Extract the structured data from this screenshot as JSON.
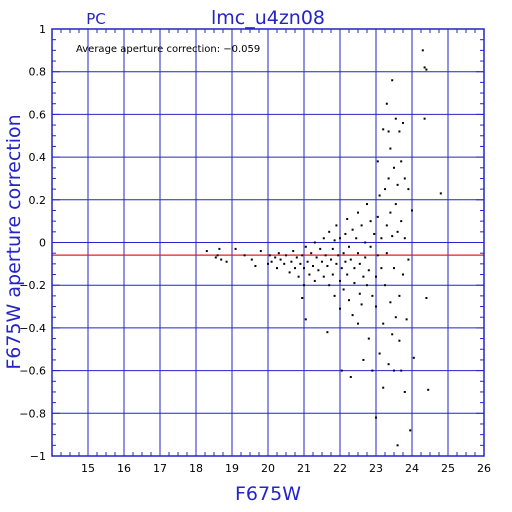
{
  "chart_data": {
    "type": "scatter",
    "title": "lmc_u4zn08",
    "subtitle": "PC",
    "annotation": "Average aperture correction:  −0.059",
    "xlabel": "F675W",
    "ylabel": "F675W aperture correction",
    "xlim": [
      14,
      26
    ],
    "ylim": [
      -1,
      1
    ],
    "xticks": [
      "15",
      "16",
      "17",
      "18",
      "19",
      "20",
      "21",
      "22",
      "23",
      "24",
      "25",
      "26"
    ],
    "yticks": [
      "1",
      "0.8",
      "0.6",
      "0.4",
      "0.2",
      "0",
      "−0.2",
      "−0.4",
      "−0.6",
      "−0.8",
      "−1"
    ],
    "xtick_values": [
      15,
      16,
      17,
      18,
      19,
      20,
      21,
      22,
      23,
      24,
      25,
      26
    ],
    "ytick_values": [
      1,
      0.8,
      0.6,
      0.4,
      0.2,
      0,
      -0.2,
      -0.4,
      -0.6,
      -0.8,
      -1
    ],
    "grid": true,
    "average_line": -0.059,
    "colors": {
      "axis": "#2424c8",
      "grid": "#2424c8",
      "average_line": "#e02020",
      "points": "#000000"
    },
    "points": [
      [
        18.3,
        -0.04
      ],
      [
        18.55,
        -0.07
      ],
      [
        18.65,
        -0.03
      ],
      [
        18.7,
        -0.08
      ],
      [
        18.85,
        -0.09
      ],
      [
        18.6,
        -0.06
      ],
      [
        19.1,
        -0.03
      ],
      [
        19.35,
        -0.06
      ],
      [
        19.55,
        -0.08
      ],
      [
        19.65,
        -0.11
      ],
      [
        19.8,
        -0.04
      ],
      [
        20.0,
        -0.1
      ],
      [
        20.05,
        -0.06
      ],
      [
        20.1,
        -0.09
      ],
      [
        20.2,
        -0.07
      ],
      [
        20.25,
        -0.12
      ],
      [
        20.3,
        -0.05
      ],
      [
        20.35,
        -0.08
      ],
      [
        20.45,
        -0.1
      ],
      [
        20.5,
        -0.06
      ],
      [
        20.6,
        -0.14
      ],
      [
        20.65,
        -0.09
      ],
      [
        20.7,
        -0.04
      ],
      [
        20.75,
        -0.12
      ],
      [
        20.8,
        -0.07
      ],
      [
        20.85,
        -0.16
      ],
      [
        20.9,
        -0.1
      ],
      [
        20.95,
        -0.06
      ],
      [
        20.95,
        -0.26
      ],
      [
        21.0,
        -0.2
      ],
      [
        21.0,
        -0.12
      ],
      [
        21.05,
        -0.36
      ],
      [
        21.05,
        -0.02
      ],
      [
        21.1,
        -0.09
      ],
      [
        21.15,
        -0.15
      ],
      [
        21.2,
        -0.05
      ],
      [
        21.25,
        -0.11
      ],
      [
        21.3,
        -0.18
      ],
      [
        21.3,
        0.0
      ],
      [
        21.35,
        -0.07
      ],
      [
        21.4,
        -0.13
      ],
      [
        21.45,
        -0.03
      ],
      [
        21.5,
        -0.09
      ],
      [
        21.55,
        -0.16
      ],
      [
        21.55,
        0.02
      ],
      [
        21.6,
        -0.06
      ],
      [
        21.65,
        -0.11
      ],
      [
        21.65,
        -0.42
      ],
      [
        21.7,
        -0.2
      ],
      [
        21.7,
        0.05
      ],
      [
        21.75,
        -0.08
      ],
      [
        21.8,
        -0.03
      ],
      [
        21.8,
        -0.15
      ],
      [
        21.85,
        -0.25
      ],
      [
        21.85,
        0.01
      ],
      [
        21.9,
        -0.1
      ],
      [
        21.9,
        0.08
      ],
      [
        21.95,
        -0.06
      ],
      [
        22.0,
        -0.18
      ],
      [
        22.0,
        -0.31
      ],
      [
        22.0,
        0.02
      ],
      [
        22.05,
        -0.12
      ],
      [
        22.05,
        -0.6
      ],
      [
        22.1,
        -0.05
      ],
      [
        22.1,
        -0.22
      ],
      [
        22.15,
        0.04
      ],
      [
        22.15,
        -0.09
      ],
      [
        22.2,
        -0.15
      ],
      [
        22.2,
        0.11
      ],
      [
        22.25,
        -0.27
      ],
      [
        22.25,
        -0.02
      ],
      [
        22.3,
        -0.63
      ],
      [
        22.3,
        -0.08
      ],
      [
        22.35,
        -0.34
      ],
      [
        22.35,
        0.06
      ],
      [
        22.4,
        -0.12
      ],
      [
        22.4,
        -0.19
      ],
      [
        22.45,
        0.02
      ],
      [
        22.5,
        -0.05
      ],
      [
        22.5,
        -0.38
      ],
      [
        22.5,
        0.14
      ],
      [
        22.55,
        -0.24
      ],
      [
        22.55,
        -0.1
      ],
      [
        22.6,
        0.08
      ],
      [
        22.6,
        -0.29
      ],
      [
        22.65,
        -0.16
      ],
      [
        22.65,
        -0.55
      ],
      [
        22.7,
        0.0
      ],
      [
        22.7,
        -0.07
      ],
      [
        22.75,
        -0.2
      ],
      [
        22.75,
        0.18
      ],
      [
        22.8,
        -0.13
      ],
      [
        22.8,
        -0.45
      ],
      [
        22.85,
        -0.02
      ],
      [
        22.85,
        0.1
      ],
      [
        22.9,
        -0.25
      ],
      [
        22.9,
        -0.6
      ],
      [
        22.95,
        0.04
      ],
      [
        23.0,
        -0.3
      ],
      [
        23.0,
        -0.16
      ],
      [
        23.0,
        -0.82
      ],
      [
        23.05,
        0.38
      ],
      [
        23.05,
        0.12
      ],
      [
        23.05,
        -0.06
      ],
      [
        23.1,
        -0.52
      ],
      [
        23.1,
        0.22
      ],
      [
        23.15,
        -0.12
      ],
      [
        23.15,
        0.02
      ],
      [
        23.2,
        0.53
      ],
      [
        23.2,
        -0.68
      ],
      [
        23.2,
        -0.38
      ],
      [
        23.25,
        0.25
      ],
      [
        23.25,
        -0.2
      ],
      [
        23.3,
        0.65
      ],
      [
        23.3,
        0.08
      ],
      [
        23.3,
        -0.05
      ],
      [
        23.35,
        0.52
      ],
      [
        23.35,
        -0.57
      ],
      [
        23.35,
        0.3
      ],
      [
        23.4,
        -0.28
      ],
      [
        23.4,
        0.44
      ],
      [
        23.4,
        0.14
      ],
      [
        23.45,
        0.76
      ],
      [
        23.45,
        -0.43
      ],
      [
        23.45,
        0.03
      ],
      [
        23.5,
        0.35
      ],
      [
        23.5,
        -0.12
      ],
      [
        23.5,
        -0.6
      ],
      [
        23.55,
        0.58
      ],
      [
        23.55,
        0.18
      ],
      [
        23.55,
        -0.35
      ],
      [
        23.6,
        0.27
      ],
      [
        23.6,
        -0.95
      ],
      [
        23.6,
        0.05
      ],
      [
        23.65,
        0.52
      ],
      [
        23.65,
        -0.25
      ],
      [
        23.65,
        -0.46
      ],
      [
        23.7,
        0.38
      ],
      [
        23.7,
        -0.6
      ],
      [
        23.7,
        0.1
      ],
      [
        23.75,
        0.56
      ],
      [
        23.75,
        -0.15
      ],
      [
        23.8,
        0.3
      ],
      [
        23.8,
        -0.7
      ],
      [
        23.8,
        0.02
      ],
      [
        23.85,
        -0.36
      ],
      [
        23.9,
        0.25
      ],
      [
        23.9,
        -0.08
      ],
      [
        23.95,
        -0.88
      ],
      [
        24.0,
        0.15
      ],
      [
        24.05,
        -0.54
      ],
      [
        24.3,
        0.9
      ],
      [
        24.35,
        0.82
      ],
      [
        24.4,
        0.81
      ],
      [
        24.35,
        0.58
      ],
      [
        24.4,
        -0.26
      ],
      [
        24.45,
        -0.69
      ],
      [
        24.8,
        0.23
      ]
    ]
  }
}
